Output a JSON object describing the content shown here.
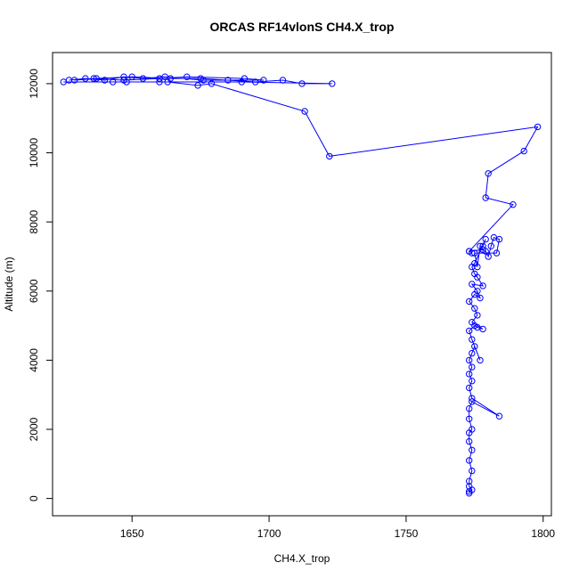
{
  "chart_data": {
    "type": "line",
    "title": "ORCAS RF14vlonS CH4.X_trop",
    "xlabel": "CH4.X_trop",
    "ylabel": "Altitude (m)",
    "xlim": [
      1621,
      1803
    ],
    "ylim": [
      -500,
      12900
    ],
    "xticks": [
      1650,
      1700,
      1750,
      1800
    ],
    "yticks": [
      0,
      2000,
      4000,
      6000,
      8000,
      10000,
      12000
    ],
    "grid": false,
    "legend": "none",
    "marker": "open-circle",
    "colors": {
      "series": "#0000ff",
      "axes": "#000000",
      "background": "#ffffff"
    },
    "series": [
      {
        "x": [
          1773,
          1773,
          1774,
          1773,
          1773,
          1774,
          1773,
          1774,
          1773,
          1773,
          1774,
          1773,
          1773,
          1774,
          1784,
          1774,
          1773,
          1774,
          1773,
          1774,
          1773,
          1774,
          1775,
          1777,
          1774,
          1773,
          1775,
          1776,
          1778,
          1774,
          1776,
          1775,
          1773,
          1775,
          1777,
          1776,
          1774,
          1778,
          1776,
          1775,
          1774,
          1775,
          1779,
          1778,
          1777,
          1776,
          1775,
          1783,
          1784,
          1782,
          1781,
          1780,
          1779,
          1778,
          1773,
          1774,
          1773,
          1789,
          1779,
          1780,
          1793,
          1798,
          1722,
          1713,
          1679,
          1674,
          1663,
          1648,
          1625,
          1643,
          1660,
          1690,
          1723,
          1712,
          1705,
          1695,
          1685,
          1675,
          1664,
          1650,
          1637,
          1629,
          1636,
          1647,
          1660,
          1670,
          1691,
          1698,
          1676,
          1662,
          1654,
          1647,
          1640,
          1633,
          1627
        ],
        "y": [
          150,
          200,
          250,
          350,
          500,
          800,
          1100,
          1400,
          1650,
          1900,
          2000,
          2300,
          2600,
          2800,
          2380,
          2900,
          3200,
          3400,
          3600,
          3800,
          4000,
          4200,
          4400,
          4000,
          4600,
          4850,
          5000,
          4950,
          4900,
          5100,
          5300,
          5500,
          5700,
          5900,
          5800,
          6000,
          6200,
          6150,
          6400,
          6500,
          6700,
          6800,
          7500,
          7300,
          7300,
          6700,
          7100,
          7100,
          7500,
          7550,
          7300,
          7000,
          7150,
          7200,
          7150,
          7100,
          7150,
          8500,
          8700,
          9400,
          10050,
          10750,
          9900,
          11200,
          12000,
          11950,
          12050,
          12050,
          12050,
          12050,
          12050,
          12050,
          12000,
          12000,
          12100,
          12050,
          12100,
          12150,
          12150,
          12200,
          12150,
          12100,
          12150,
          12100,
          12150,
          12200,
          12150,
          12100,
          12100,
          12200,
          12150,
          12200,
          12100,
          12150,
          12100
        ]
      }
    ]
  }
}
